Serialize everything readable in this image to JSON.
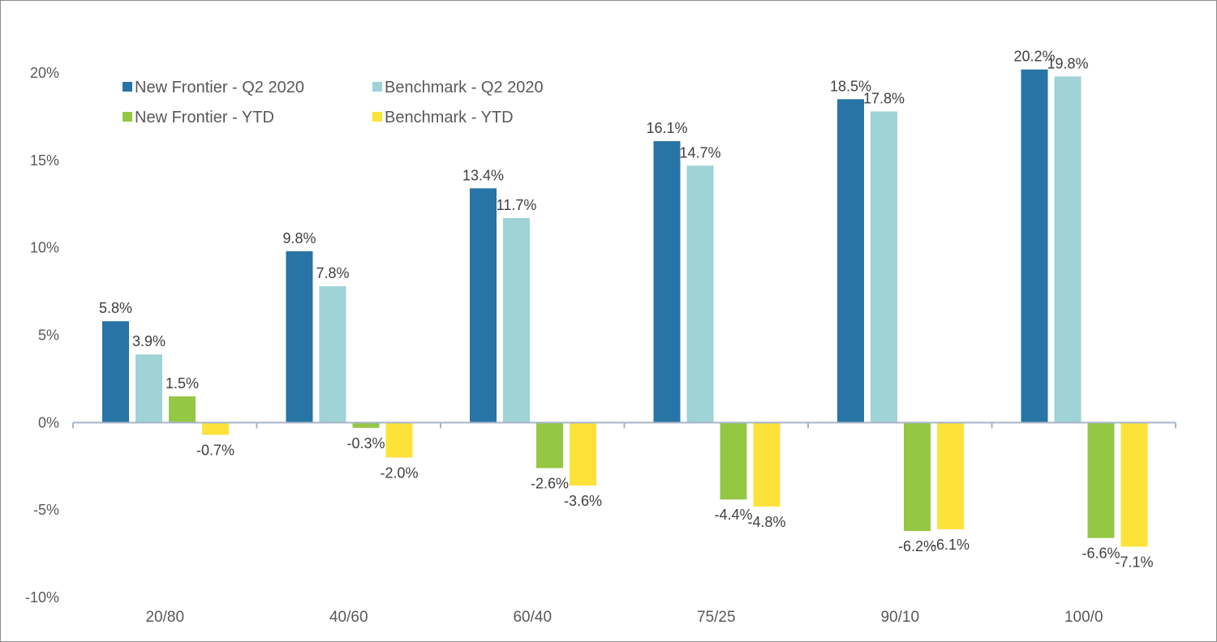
{
  "chart_data": {
    "type": "bar",
    "title": "",
    "xlabel": "",
    "ylabel": "",
    "categories": [
      "20/80",
      "40/60",
      "60/40",
      "75/25",
      "90/10",
      "100/0"
    ],
    "ylim": [
      -10,
      20
    ],
    "yticks": [
      20,
      15,
      10,
      5,
      0,
      -5,
      -10
    ],
    "ytick_labels": [
      "20%",
      "15%",
      "10%",
      "5%",
      "0%",
      "-5%",
      "-10%"
    ],
    "grid": false,
    "legend_position": "top-left",
    "series": [
      {
        "name": "New Frontier - Q2 2020",
        "color": "#2874a6",
        "values": [
          5.8,
          9.8,
          13.4,
          16.1,
          18.5,
          20.2
        ],
        "labels": [
          "5.8%",
          "9.8%",
          "13.4%",
          "16.1%",
          "18.5%",
          "20.2%"
        ]
      },
      {
        "name": "Benchmark - Q2 2020",
        "color": "#9fd3d6",
        "values": [
          3.9,
          7.8,
          11.7,
          14.7,
          17.8,
          19.8
        ],
        "labels": [
          "3.9%",
          "7.8%",
          "11.7%",
          "14.7%",
          "17.8%",
          "19.8%"
        ]
      },
      {
        "name": "New Frontier - YTD",
        "color": "#94c744",
        "values": [
          1.5,
          -0.3,
          -2.6,
          -4.4,
          -6.2,
          -6.6
        ],
        "labels": [
          "1.5%",
          "-0.3%",
          "-2.6%",
          "-4.4%",
          "-6.2%",
          "-6.6%"
        ]
      },
      {
        "name": "Benchmark - YTD",
        "color": "#fde23a",
        "values": [
          -0.7,
          -2.0,
          -3.6,
          -4.8,
          -6.1,
          -7.1
        ],
        "labels": [
          "-0.7%",
          "-2.0%",
          "-3.6%",
          "-4.8%",
          "-6.1%",
          "-7.1%"
        ]
      }
    ],
    "axis_color": "#a6b4c8"
  }
}
